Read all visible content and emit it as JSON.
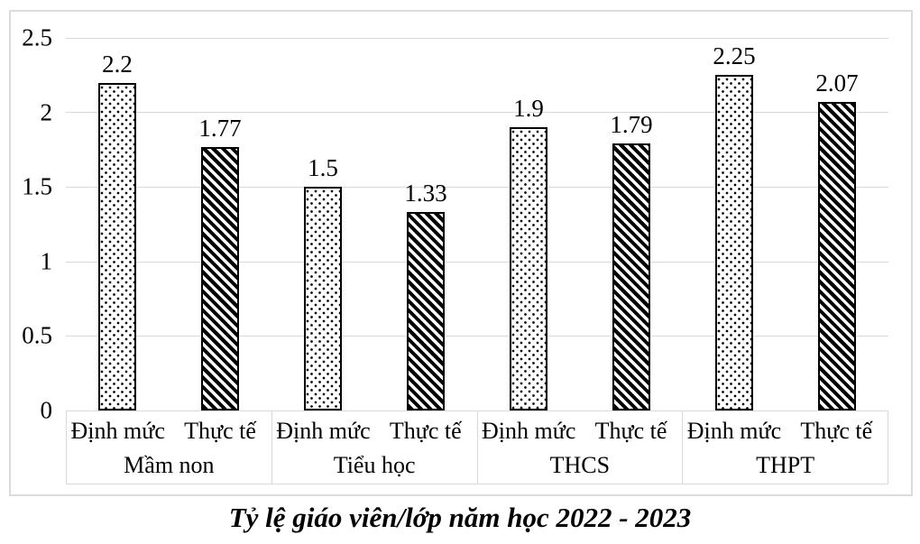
{
  "caption": {
    "text": "Tỷ lệ giáo viên/lớp năm học 2022 - 2023"
  },
  "chart_data": {
    "type": "bar",
    "title": "Tỷ lệ giáo viên/lớp năm học 2022 - 2023",
    "y_axis": {
      "min": 0,
      "max": 2.5,
      "tick_step": 0.5,
      "ticks": [
        "0",
        "0.5",
        "1",
        "1.5",
        "2",
        "2.5"
      ],
      "grid": true
    },
    "series_names": [
      "Định mức",
      "Thực tế"
    ],
    "patterns": {
      "Định mức": "dots",
      "Thực tế": "diagonal-stripes-down"
    },
    "legend_position": "none",
    "groups": [
      {
        "label": "Mầm non",
        "bars": [
          {
            "series": "Định mức",
            "value": 2.2,
            "label": "2.2",
            "pattern": "dots"
          },
          {
            "series": "Thực tế",
            "value": 1.77,
            "label": "1.77",
            "pattern": "stripes"
          }
        ]
      },
      {
        "label": "Tiểu học",
        "bars": [
          {
            "series": "Định mức",
            "value": 1.5,
            "label": "1.5",
            "pattern": "dots"
          },
          {
            "series": "Thực tế",
            "value": 1.33,
            "label": "1.33",
            "pattern": "stripes"
          }
        ]
      },
      {
        "label": "THCS",
        "bars": [
          {
            "series": "Định mức",
            "value": 1.9,
            "label": "1.9",
            "pattern": "dots"
          },
          {
            "series": "Thực tế",
            "value": 1.79,
            "label": "1.79",
            "pattern": "stripes"
          }
        ]
      },
      {
        "label": "THPT",
        "bars": [
          {
            "series": "Định mức",
            "value": 2.25,
            "label": "2.25",
            "pattern": "dots"
          },
          {
            "series": "Thực tế",
            "value": 2.07,
            "label": "2.07",
            "pattern": "stripes"
          }
        ]
      }
    ],
    "colors": {
      "grid": "#D9D9D9",
      "frame_border": "#DBDBDB",
      "bar_outline": "#000000",
      "bar_fill": "#FFFFFF",
      "text": "#000000"
    }
  }
}
